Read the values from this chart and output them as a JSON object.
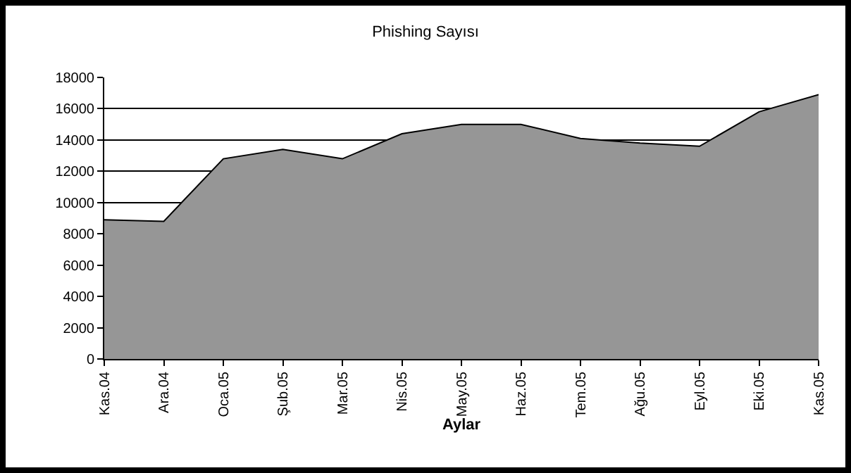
{
  "chart_data": {
    "type": "area",
    "title": "Phishing Sayısı",
    "xlabel": "Aylar",
    "categories": [
      "Kas.04",
      "Ara.04",
      "Oca.05",
      "Şub.05",
      "Mar.05",
      "Nis.05",
      "May.05",
      "Haz.05",
      "Tem.05",
      "Ağu.05",
      "Eyl.05",
      "Eki.05",
      "Kas.05"
    ],
    "series": [
      {
        "color": "#969696",
        "values": [
          8900,
          8800,
          12800,
          13400,
          12800,
          14400,
          15000,
          15000,
          14100,
          13800,
          13600,
          15800,
          16900
        ]
      }
    ],
    "ylim": [
      0,
      18000
    ],
    "yticks": [
      0,
      2000,
      4000,
      6000,
      8000,
      10000,
      12000,
      14000,
      16000,
      18000
    ],
    "grid": "y"
  }
}
